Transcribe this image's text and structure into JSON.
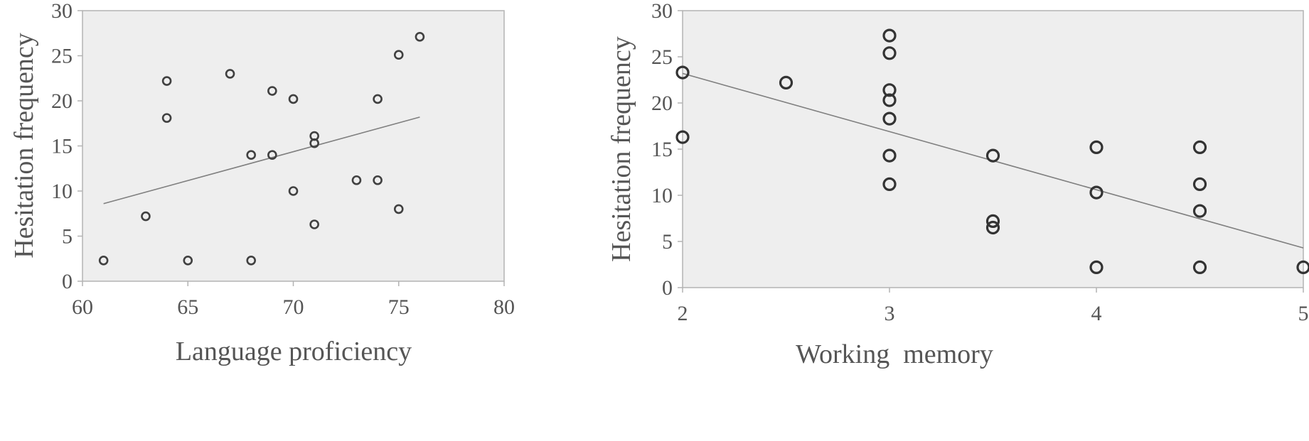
{
  "chart_data": [
    {
      "type": "scatter",
      "xlabel": "Language proficiency",
      "ylabel": "Hesitation frequency",
      "xlim": [
        60,
        80
      ],
      "ylim": [
        0,
        30
      ],
      "xticks": [
        60,
        65,
        70,
        75,
        80
      ],
      "yticks": [
        0,
        5,
        10,
        15,
        20,
        25,
        30
      ],
      "grid": false,
      "marker": "small-circle",
      "points": [
        {
          "x": 61,
          "y": 2.3
        },
        {
          "x": 63,
          "y": 7.2
        },
        {
          "x": 64,
          "y": 22.2
        },
        {
          "x": 64,
          "y": 18.1
        },
        {
          "x": 65,
          "y": 2.3
        },
        {
          "x": 67,
          "y": 23.0
        },
        {
          "x": 68,
          "y": 14.0
        },
        {
          "x": 68,
          "y": 2.3
        },
        {
          "x": 69,
          "y": 21.1
        },
        {
          "x": 69,
          "y": 14.0
        },
        {
          "x": 70,
          "y": 20.2
        },
        {
          "x": 70,
          "y": 10.0
        },
        {
          "x": 71,
          "y": 16.1
        },
        {
          "x": 71,
          "y": 15.3
        },
        {
          "x": 71,
          "y": 6.3
        },
        {
          "x": 73,
          "y": 11.2
        },
        {
          "x": 74,
          "y": 20.2
        },
        {
          "x": 74,
          "y": 11.2
        },
        {
          "x": 75,
          "y": 25.1
        },
        {
          "x": 75,
          "y": 8.0
        },
        {
          "x": 76,
          "y": 27.1
        }
      ],
      "trendline": {
        "x": [
          61,
          76
        ],
        "y": [
          8.6,
          18.2
        ]
      }
    },
    {
      "type": "scatter",
      "xlabel": "Working  memory",
      "ylabel": "Hesitation frequency",
      "xlim": [
        2,
        5
      ],
      "ylim": [
        0,
        30
      ],
      "xticks": [
        2,
        3,
        4,
        5
      ],
      "yticks": [
        0,
        5,
        10,
        15,
        20,
        25,
        30
      ],
      "grid": false,
      "marker": "large-circle",
      "points": [
        {
          "x": 2,
          "y": 23.3
        },
        {
          "x": 2,
          "y": 16.3
        },
        {
          "x": 2.5,
          "y": 22.2
        },
        {
          "x": 3,
          "y": 27.3
        },
        {
          "x": 3,
          "y": 25.4
        },
        {
          "x": 3,
          "y": 21.4
        },
        {
          "x": 3,
          "y": 20.3
        },
        {
          "x": 3,
          "y": 18.3
        },
        {
          "x": 3,
          "y": 14.3
        },
        {
          "x": 3,
          "y": 11.2
        },
        {
          "x": 3.5,
          "y": 14.3
        },
        {
          "x": 3.5,
          "y": 7.2
        },
        {
          "x": 3.5,
          "y": 6.5
        },
        {
          "x": 4,
          "y": 15.2
        },
        {
          "x": 4,
          "y": 10.3
        },
        {
          "x": 4,
          "y": 2.2
        },
        {
          "x": 4.5,
          "y": 15.2
        },
        {
          "x": 4.5,
          "y": 11.2
        },
        {
          "x": 4.5,
          "y": 8.3
        },
        {
          "x": 4.5,
          "y": 2.2
        },
        {
          "x": 5,
          "y": 2.2
        }
      ],
      "trendline": {
        "x": [
          2,
          5
        ],
        "y": [
          23.2,
          4.3
        ]
      }
    }
  ]
}
